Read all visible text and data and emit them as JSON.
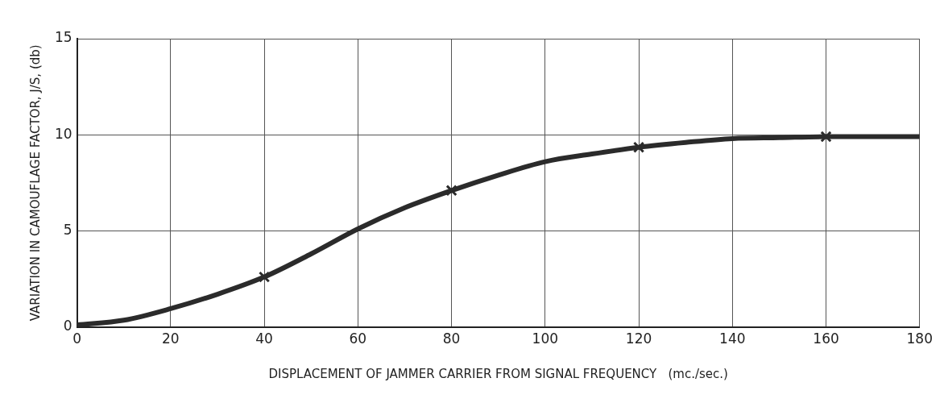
{
  "chart_data": {
    "type": "line",
    "xlabel": "DISPLACEMENT OF JAMMER CARRIER FROM SIGNAL FREQUENCY   (mc./sec.)",
    "ylabel": "VARIATION IN CAMOUFLAGE FACTOR, J/S, (db)",
    "xlim": [
      0,
      180
    ],
    "xticks": [
      0,
      20,
      40,
      60,
      80,
      100,
      120,
      140,
      160,
      180
    ],
    "ylim": [
      0,
      15
    ],
    "yticks": [
      0,
      5,
      10,
      15
    ],
    "grid": true,
    "legend": false,
    "series": [
      {
        "type": "line",
        "color": "#2b2b2b",
        "marker": "none",
        "line_style": "solid",
        "x": [
          0,
          10,
          20,
          30,
          40,
          50,
          60,
          70,
          80,
          90,
          100,
          110,
          120,
          130,
          140,
          150,
          160,
          170,
          180
        ],
        "values": [
          0.1,
          0.35,
          0.95,
          1.7,
          2.6,
          3.8,
          5.1,
          6.2,
          7.1,
          7.9,
          8.6,
          9.0,
          9.35,
          9.6,
          9.8,
          9.85,
          9.9,
          9.9,
          9.9
        ]
      },
      {
        "type": "scatter",
        "color": "#2b2b2b",
        "marker": "cross",
        "x": [
          40,
          80,
          120,
          160
        ],
        "values": [
          2.6,
          7.1,
          9.35,
          9.9
        ]
      }
    ]
  }
}
